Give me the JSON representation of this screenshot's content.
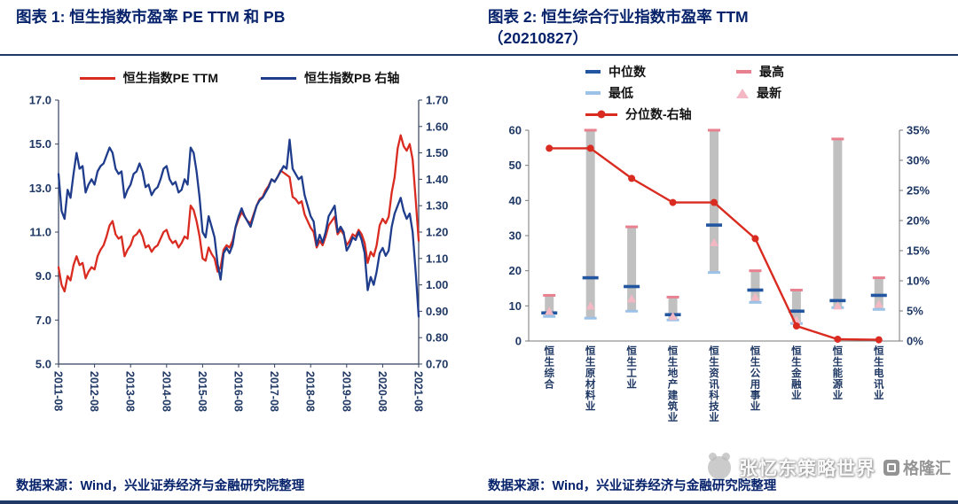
{
  "header": {
    "left_title": "图表 1: 恒生指数市盈率 PE TTM 和 PB",
    "right_title_line1": "图表 2: 恒生综合行业指数市盈率 TTM",
    "right_title_line2": "（20210827）"
  },
  "footer": {
    "left_source": "数据来源：Wind，兴业证券经济与金融研究院整理",
    "right_source": "数据来源：Wind，兴业证券经济与金融研究院整理"
  },
  "watermark": {
    "brand": "张忆东策略世界",
    "logo": "格隆汇"
  },
  "colors": {
    "accent_navy": "#1f3864",
    "title_text": "#06226b",
    "axis_text": "#1f3864",
    "red": "#d92b20",
    "navy_line": "#1f3d8c",
    "bar_gray": "#c0c0c0"
  },
  "chart_data": [
    {
      "type": "line",
      "title": "恒生指数市盈率 PE TTM 和 PB",
      "x_frequency": "monthly",
      "x_range": [
        "2011-08",
        "2021-08"
      ],
      "x_tick_labels": [
        "2011-08",
        "2012-08",
        "2013-08",
        "2014-08",
        "2015-08",
        "2016-08",
        "2017-08",
        "2018-08",
        "2019-08",
        "2020-08",
        "2021-08"
      ],
      "left_axis": {
        "min": 5,
        "max": 17,
        "step": 2
      },
      "right_axis": {
        "min": 0.7,
        "max": 1.7,
        "step": 0.1
      },
      "grid": false,
      "legend_position": "top",
      "series": [
        {
          "name": "恒生指数PE TTM",
          "axis": "left",
          "color": "#d92b20",
          "values": [
            9.4,
            8.6,
            8.3,
            9.0,
            8.8,
            9.5,
            9.9,
            9.5,
            9.6,
            8.9,
            9.2,
            9.4,
            9.3,
            9.9,
            10.2,
            10.4,
            10.8,
            11.3,
            11.5,
            10.9,
            10.7,
            10.8,
            9.9,
            10.2,
            10.4,
            10.8,
            10.9,
            11.1,
            10.8,
            10.3,
            10.4,
            10.1,
            10.3,
            10.4,
            10.7,
            11.0,
            11.1,
            10.7,
            10.5,
            10.6,
            10.3,
            10.5,
            10.8,
            10.7,
            12.2,
            12.0,
            11.5,
            10.8,
            9.8,
            9.7,
            10.3,
            10.0,
            9.8,
            9.2,
            9.4,
            10.2,
            10.4,
            10.3,
            10.6,
            11.2,
            11.6,
            11.9,
            11.7,
            11.5,
            11.4,
            11.8,
            12.2,
            12.5,
            12.6,
            12.9,
            13.1,
            13.4,
            13.3,
            13.5,
            13.8,
            13.7,
            13.6,
            13.5,
            12.6,
            12.5,
            12.3,
            12.4,
            11.8,
            11.5,
            11.2,
            11.0,
            10.3,
            10.6,
            10.4,
            10.8,
            11.3,
            11.5,
            11.7,
            10.9,
            11.1,
            10.9,
            10.4,
            10.6,
            10.9,
            10.8,
            11.1,
            10.9,
            10.5,
            9.6,
            10.1,
            9.9,
            10.4,
            11.3,
            11.6,
            11.4,
            11.7,
            12.8,
            13.5,
            14.8,
            15.4,
            14.9,
            14.7,
            15.0,
            14.3,
            12.5,
            10.6
          ]
        },
        {
          "name": "恒生指数PB 右轴",
          "axis": "right",
          "color": "#1f3d8c",
          "values": [
            1.42,
            1.28,
            1.25,
            1.36,
            1.33,
            1.42,
            1.5,
            1.44,
            1.45,
            1.35,
            1.38,
            1.4,
            1.38,
            1.43,
            1.45,
            1.46,
            1.49,
            1.52,
            1.5,
            1.44,
            1.42,
            1.43,
            1.33,
            1.36,
            1.38,
            1.42,
            1.43,
            1.46,
            1.43,
            1.37,
            1.38,
            1.34,
            1.36,
            1.37,
            1.4,
            1.44,
            1.45,
            1.4,
            1.38,
            1.39,
            1.35,
            1.36,
            1.4,
            1.38,
            1.52,
            1.5,
            1.43,
            1.33,
            1.2,
            1.18,
            1.26,
            1.22,
            1.18,
            1.08,
            1.02,
            1.12,
            1.14,
            1.12,
            1.15,
            1.22,
            1.26,
            1.29,
            1.26,
            1.24,
            1.22,
            1.26,
            1.3,
            1.32,
            1.33,
            1.35,
            1.37,
            1.4,
            1.39,
            1.41,
            1.43,
            1.45,
            1.44,
            1.55,
            1.44,
            1.42,
            1.4,
            1.41,
            1.34,
            1.3,
            1.26,
            1.24,
            1.15,
            1.19,
            1.16,
            1.2,
            1.26,
            1.28,
            1.3,
            1.2,
            1.22,
            1.2,
            1.13,
            1.15,
            1.18,
            1.17,
            1.2,
            1.17,
            1.12,
            0.98,
            1.03,
            1.0,
            1.05,
            1.12,
            1.14,
            1.11,
            1.13,
            1.22,
            1.27,
            1.3,
            1.33,
            1.28,
            1.25,
            1.27,
            1.2,
            1.05,
            0.88
          ]
        }
      ]
    },
    {
      "type": "range-bar-with-line",
      "title": "恒生综合行业指数市盈率 TTM（20210827）",
      "categories": [
        "恒生综合",
        "恒生原材料业",
        "恒生工业",
        "恒生地产建筑业",
        "恒生资讯科技业",
        "恒生公用事业",
        "恒生金融业",
        "恒生能源业",
        "恒生电讯业"
      ],
      "left_axis": {
        "min": 0,
        "max": 60,
        "step": 10
      },
      "right_axis": {
        "min": 0,
        "max": 35,
        "step": 5,
        "unit": "%"
      },
      "bar_color": "#c0c0c0",
      "grid": false,
      "series": {
        "median": {
          "name": "中位数",
          "color": "#2356a0",
          "values": [
            8,
            18,
            15.5,
            7.5,
            33,
            14.5,
            8.5,
            11.5,
            13
          ]
        },
        "max": {
          "name": "最高",
          "color": "#e8808f",
          "values": [
            13,
            60,
            32.5,
            12.5,
            60,
            20,
            14.5,
            57.5,
            18
          ]
        },
        "min": {
          "name": "最低",
          "color": "#9cc2e8",
          "values": [
            7,
            6.5,
            8.5,
            6,
            19.5,
            11,
            5,
            9.5,
            9
          ]
        },
        "latest": {
          "name": "最新",
          "color": "#f4b8c4",
          "values": [
            8.5,
            10,
            12,
            7,
            28,
            12.5,
            6,
            10,
            10.5
          ]
        },
        "percentile": {
          "name": "分位数-右轴",
          "color": "#d92b20",
          "axis": "right",
          "values": [
            32,
            32,
            27,
            23,
            23,
            17,
            2.5,
            0.3,
            0.2
          ]
        }
      }
    }
  ]
}
